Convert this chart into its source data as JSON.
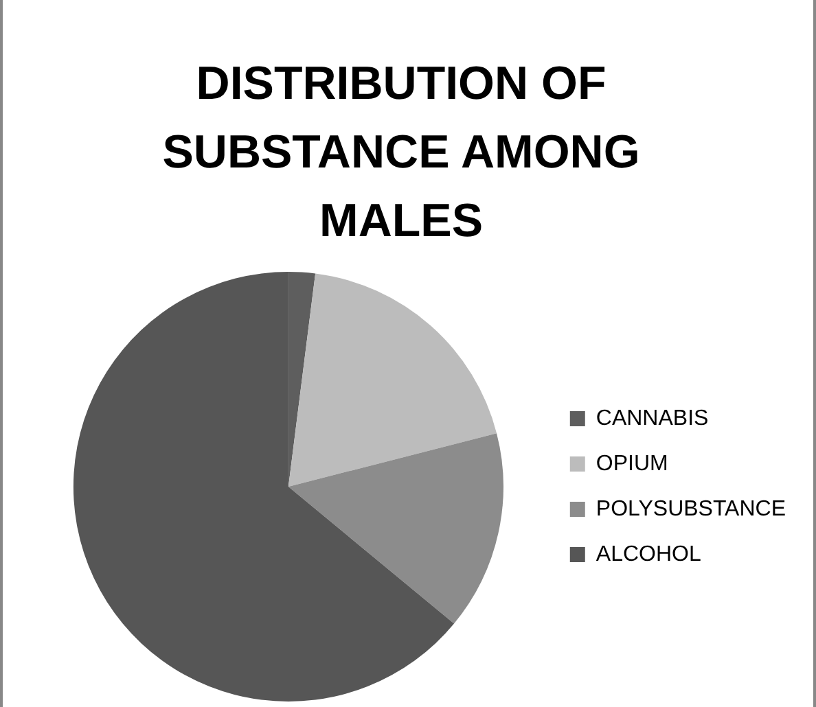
{
  "chart_data": {
    "type": "pie",
    "title": "DISTRIBUTION OF SUBSTANCE AMONG MALES",
    "categories": [
      "CANNABIS",
      "OPIUM",
      "POLYSUBSTANCE",
      "ALCOHOL"
    ],
    "values": [
      2,
      19,
      15,
      64
    ],
    "colors": [
      "#5e5e5e",
      "#bcbcbc",
      "#8c8c8c",
      "#565656"
    ],
    "legend": "right"
  }
}
